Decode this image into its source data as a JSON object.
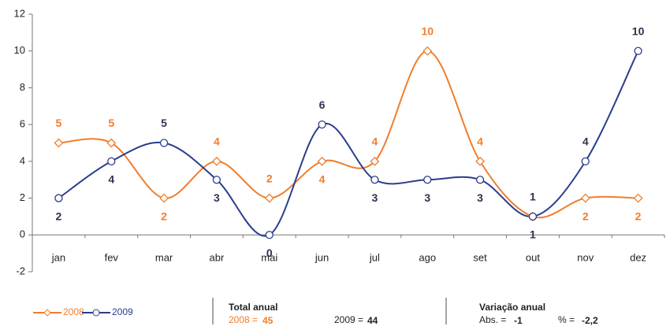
{
  "chart_data": {
    "type": "line",
    "categories": [
      "jan",
      "fev",
      "mar",
      "abr",
      "mai",
      "jun",
      "jul",
      "ago",
      "set",
      "out",
      "nov",
      "dez"
    ],
    "series": [
      {
        "name": "2008",
        "color": "#f07d2c",
        "marker": "diamond",
        "values": [
          5,
          5,
          2,
          4,
          2,
          4,
          4,
          10,
          4,
          1,
          2,
          2
        ]
      },
      {
        "name": "2009",
        "color": "#2b3d8c",
        "marker": "circle",
        "values": [
          2,
          4,
          5,
          3,
          0,
          6,
          3,
          3,
          3,
          1,
          4,
          10
        ]
      }
    ],
    "ylim": [
      -2,
      12
    ],
    "yticks": [
      -2,
      0,
      2,
      4,
      6,
      8,
      10,
      12
    ],
    "grid": false,
    "smooth": true,
    "legend": "bottom-left"
  },
  "summary": {
    "total": {
      "title": "Total anual",
      "items": [
        {
          "label": "2008 =",
          "value": 45
        },
        {
          "label": "2009 =",
          "value": 44
        }
      ]
    },
    "variation": {
      "title": "Variação anual",
      "items": [
        {
          "label": "Abs. =",
          "value": -1
        },
        {
          "label": "% =",
          "value": "-2,2"
        }
      ]
    }
  }
}
